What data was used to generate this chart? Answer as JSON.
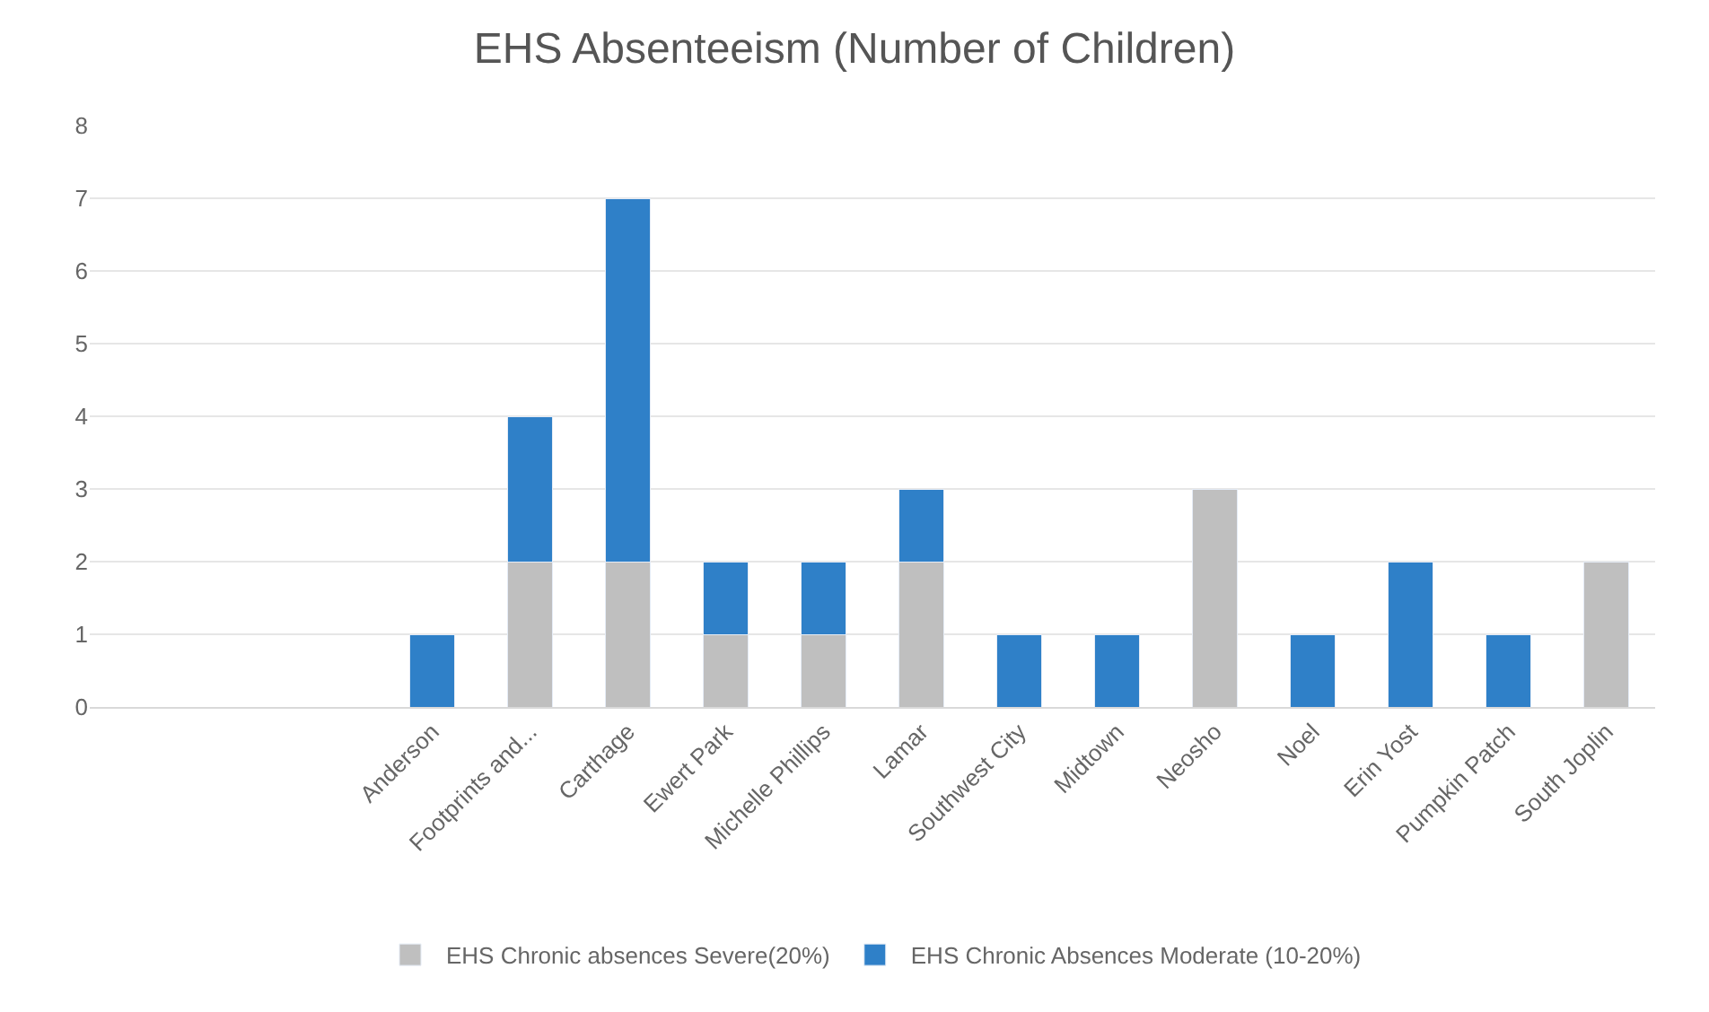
{
  "chart_data": {
    "type": "bar",
    "title": "EHS Absenteeism (Number of Children)",
    "stacked": true,
    "grid": "y",
    "legend": "bottom",
    "categories": [
      null,
      null,
      null,
      "Anderson",
      "Footprints and...",
      "Carthage",
      "Ewert Park",
      "Michelle Phillips",
      "Lamar",
      "Southwest City",
      "Midtown",
      "Neosho",
      "Noel",
      "Erin Yost",
      "Pumpkin Patch",
      "South Joplin"
    ],
    "series": [
      {
        "name": "EHS Chronic absences Severe(20%)",
        "color": "#bfbfbf",
        "values": [
          null,
          null,
          null,
          null,
          2,
          2,
          1,
          1,
          2,
          null,
          null,
          3,
          null,
          null,
          null,
          2
        ]
      },
      {
        "name": "EHS Chronic Absences Moderate (10-20%)",
        "color": "#2f80c8",
        "values": [
          null,
          null,
          null,
          1,
          2,
          5,
          1,
          1,
          1,
          1,
          1,
          null,
          1,
          2,
          1,
          null
        ]
      }
    ],
    "ylim": [
      0,
      8
    ],
    "yticks": [
      0,
      1,
      2,
      3,
      4,
      5,
      6,
      7,
      8
    ]
  }
}
